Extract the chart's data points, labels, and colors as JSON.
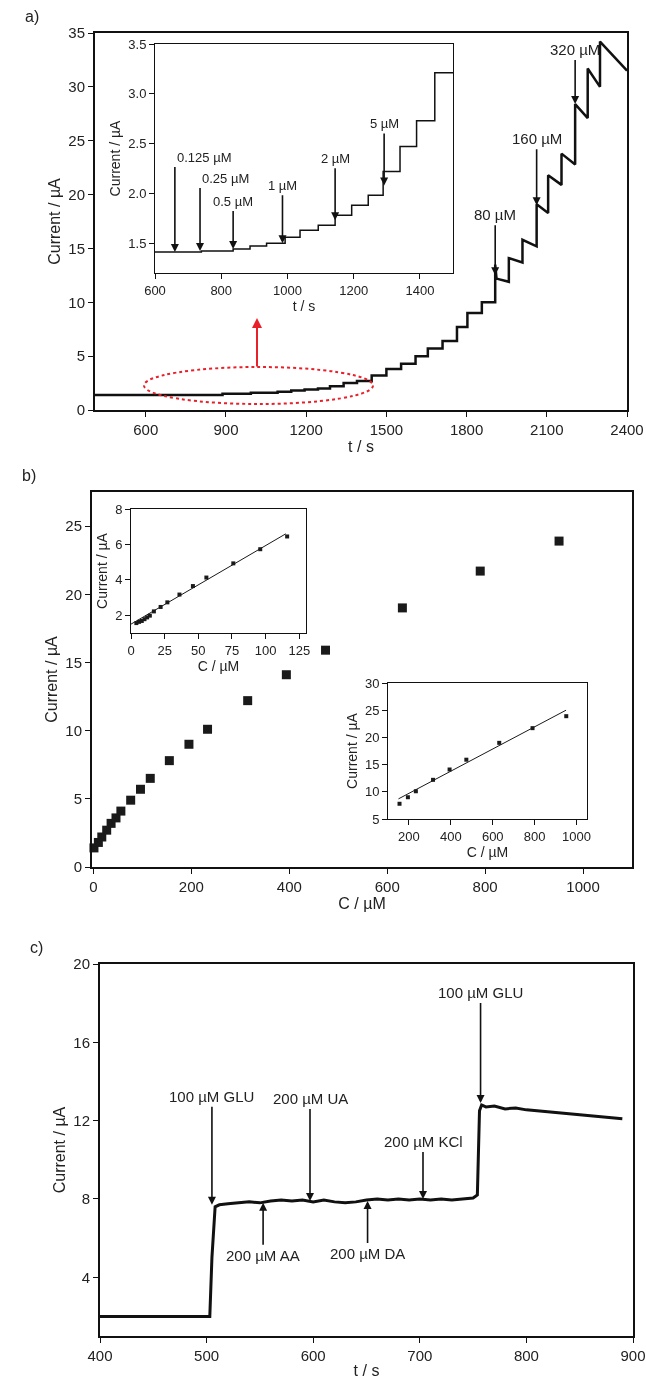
{
  "chart_data": [
    {
      "type": "line",
      "title": "a)",
      "xlabel": "t / s",
      "ylabel": "Current / µA",
      "color": "#111111",
      "x": [
        410,
        740,
        740,
        836,
        836,
        887,
        887,
        937,
        937,
        993,
        993,
        1038,
        1038,
        1093,
        1093,
        1144,
        1144,
        1194,
        1194,
        1244,
        1244,
        1289,
        1289,
        1340,
        1340,
        1390,
        1390,
        1445,
        1445,
        1500,
        1500,
        1555,
        1555,
        1609,
        1609,
        1655,
        1655,
        1710,
        1710,
        1764,
        1764,
        1803,
        1803,
        1857,
        1857,
        1907,
        1907,
        1912,
        1958,
        1958,
        2009,
        2009,
        2062,
        2062,
        2105,
        2105,
        2155,
        2155,
        2206,
        2206,
        2253,
        2253,
        2299,
        2299,
        2400
      ],
      "values": [
        1.4,
        1.4,
        1.4,
        1.4,
        1.4,
        1.4,
        1.5,
        1.5,
        1.5,
        1.5,
        1.6,
        1.6,
        1.6,
        1.6,
        1.7,
        1.7,
        1.8,
        1.8,
        1.9,
        1.9,
        2.0,
        2.0,
        2.2,
        2.2,
        2.5,
        2.5,
        2.7,
        2.7,
        3.2,
        3.2,
        3.8,
        3.8,
        4.3,
        4.3,
        5.0,
        5.0,
        5.7,
        5.7,
        6.4,
        6.4,
        7.7,
        7.7,
        9.0,
        9.0,
        10.0,
        10.0,
        13.5,
        12.2,
        11.9,
        14.1,
        13.7,
        15.8,
        15.2,
        19.1,
        18.3,
        21.8,
        20.9,
        23.8,
        22.8,
        28.4,
        27.1,
        31.7,
        30.0,
        34.2,
        31.5
      ],
      "xlim": [
        410,
        2400
      ],
      "xticks": [
        600,
        900,
        1200,
        1500,
        1800,
        2100,
        2400
      ],
      "ylim": [
        0,
        35
      ],
      "yticks": [
        0,
        5,
        10,
        15,
        20,
        25,
        30,
        35
      ],
      "annotations": [
        {
          "text": "80 µM",
          "x": 1907,
          "y": 12.5
        },
        {
          "text": "160 µM",
          "x": 2062,
          "y": 19.0
        },
        {
          "text": "320 µM",
          "x": 2206,
          "y": 28.4
        }
      ]
    },
    {
      "type": "line",
      "xlabel": "t / s",
      "ylabel": "Current / µA",
      "color": "#111111",
      "x": [
        600,
        740,
        740,
        836,
        836,
        887,
        887,
        937,
        937,
        993,
        993,
        1038,
        1038,
        1093,
        1093,
        1144,
        1144,
        1194,
        1194,
        1244,
        1244,
        1289,
        1289,
        1340,
        1340,
        1390,
        1390,
        1445,
        1445,
        1500
      ],
      "values": [
        1.41,
        1.41,
        1.42,
        1.42,
        1.44,
        1.44,
        1.47,
        1.47,
        1.5,
        1.5,
        1.56,
        1.56,
        1.63,
        1.63,
        1.68,
        1.68,
        1.78,
        1.78,
        1.88,
        1.88,
        1.98,
        1.98,
        2.22,
        2.22,
        2.47,
        2.47,
        2.73,
        2.73,
        3.21,
        3.21
      ],
      "xlim": [
        600,
        1500
      ],
      "xticks": [
        600,
        800,
        1000,
        1200,
        1400
      ],
      "ylim": [
        1.2,
        3.5
      ],
      "yticks": [
        1.5,
        {
          "value": 2.0,
          "label": "2.0"
        },
        2.5,
        {
          "value": 3.0,
          "label": "3.0"
        },
        3.5
      ],
      "annotations": [
        {
          "text": "0.125 µM",
          "x": 660,
          "y": 1.41
        },
        {
          "text": "0.25 µM",
          "x": 736,
          "y": 1.42
        },
        {
          "text": "0.5 µM",
          "x": 836,
          "y": 1.44
        },
        {
          "text": "1 µM",
          "x": 985,
          "y": 1.5
        },
        {
          "text": "2 µM",
          "x": 1144,
          "y": 1.73
        },
        {
          "text": "5 µM",
          "x": 1292,
          "y": 2.08
        }
      ]
    },
    {
      "type": "scatter",
      "title": "b)",
      "xlabel": "C / µM",
      "ylabel": "Current / µA",
      "color": "#1a1a1a",
      "marker": "square",
      "x": [
        1,
        10,
        17,
        27,
        36,
        46,
        56,
        76,
        96,
        116,
        155,
        195,
        233,
        315,
        394,
        474,
        631,
        790,
        951
      ],
      "values": [
        1.4,
        1.8,
        2.2,
        2.7,
        3.2,
        3.6,
        4.1,
        4.9,
        5.7,
        6.5,
        7.8,
        9.0,
        10.1,
        12.2,
        14.1,
        15.9,
        19.0,
        21.7,
        23.9
      ],
      "xlim": [
        -3,
        1100
      ],
      "xticks": [
        0,
        200,
        400,
        600,
        800,
        1000
      ],
      "ylim": [
        0,
        27.5
      ],
      "yticks": [
        0,
        5,
        10,
        15,
        20,
        25
      ]
    },
    {
      "type": "scatter",
      "xlabel": "C / µM",
      "ylabel": "Current / µA",
      "marker": "square",
      "series": [
        {
          "color": "#1a1a1a",
          "x": [
            4,
            6,
            8,
            10,
            12,
            14,
            17,
            22,
            27,
            36,
            46,
            56,
            76,
            96,
            116
          ],
          "values": [
            1.56,
            1.63,
            1.68,
            1.78,
            1.88,
            1.98,
            2.22,
            2.47,
            2.73,
            3.17,
            3.65,
            4.13,
            4.93,
            5.73,
            6.45
          ]
        },
        {
          "type": "line",
          "marker": "none",
          "color": "#1a1a1a",
          "x": [
            0,
            115
          ],
          "values": [
            1.5,
            6.6
          ]
        }
      ],
      "xlim": [
        0,
        130
      ],
      "xticks": [
        0,
        25,
        50,
        75,
        100,
        125
      ],
      "ylim": [
        1,
        8
      ],
      "yticks": [
        2,
        4,
        6,
        8
      ]
    },
    {
      "type": "scatter",
      "xlabel": "C / µM",
      "ylabel": "Current / µA",
      "marker": "square",
      "series": [
        {
          "color": "#1a1a1a",
          "x": [
            155,
            195,
            233,
            315,
            394,
            474,
            631,
            790,
            951
          ],
          "values": [
            7.8,
            9.0,
            10.1,
            12.2,
            14.1,
            15.9,
            19.0,
            21.7,
            23.9
          ]
        },
        {
          "type": "line",
          "marker": "none",
          "color": "#1a1a1a",
          "x": [
            150,
            950
          ],
          "values": [
            8.7,
            25.0
          ]
        }
      ],
      "xlim": [
        100,
        1050
      ],
      "xticks": [
        200,
        400,
        600,
        800,
        1000
      ],
      "ylim": [
        5,
        30
      ],
      "yticks": [
        5,
        10,
        15,
        20,
        25,
        30
      ]
    },
    {
      "type": "line",
      "title": "c)",
      "xlabel": "t / s",
      "ylabel": "Current / µA",
      "color": "#111111",
      "x": [
        400,
        450,
        500,
        503,
        505,
        508,
        512,
        520,
        530,
        540,
        550,
        560,
        570,
        580,
        590,
        600,
        610,
        620,
        630,
        640,
        650,
        660,
        670,
        680,
        690,
        700,
        710,
        720,
        730,
        740,
        750,
        754,
        756,
        758,
        762,
        770,
        780,
        790,
        800,
        810,
        820,
        830,
        840,
        850,
        860,
        870,
        880,
        890
      ],
      "values": [
        2.0,
        2.0,
        2.0,
        2.0,
        5.0,
        7.6,
        7.7,
        7.75,
        7.8,
        7.85,
        7.8,
        7.9,
        7.95,
        7.9,
        7.95,
        7.85,
        7.95,
        7.85,
        7.8,
        7.85,
        7.95,
        8.0,
        7.95,
        8.0,
        7.95,
        8.0,
        7.95,
        8.0,
        7.95,
        8.0,
        8.05,
        8.2,
        12.5,
        12.8,
        12.7,
        12.75,
        12.6,
        12.65,
        12.55,
        12.5,
        12.45,
        12.4,
        12.35,
        12.3,
        12.25,
        12.2,
        12.15,
        12.1
      ],
      "xlim": [
        400,
        900
      ],
      "xticks": [
        400,
        500,
        600,
        700,
        800,
        900
      ],
      "ylim": [
        1,
        20
      ],
      "yticks": [
        4,
        8,
        12,
        16,
        20
      ],
      "annotations": [
        {
          "text": "100 µM GLU",
          "x": 505,
          "y": 7.7
        },
        {
          "text": "200 µM UA",
          "x": 597,
          "y": 7.9
        },
        {
          "text": "200 µM KCl",
          "x": 703,
          "y": 8.0
        },
        {
          "text": "100 µM GLU",
          "x": 757,
          "y": 12.9
        },
        {
          "text": "200 µM AA",
          "x": 553,
          "y": 7.8
        },
        {
          "text": "200 µM DA",
          "x": 651,
          "y": 7.9
        }
      ]
    }
  ]
}
